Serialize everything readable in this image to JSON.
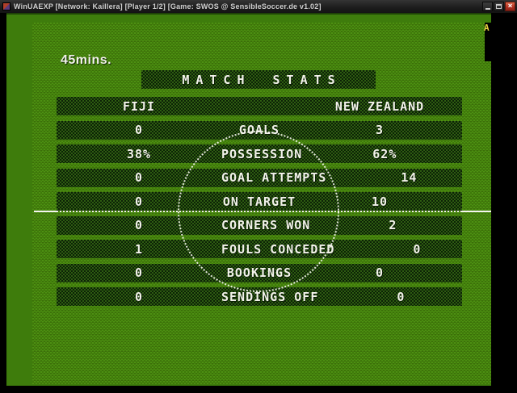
{
  "window": {
    "title": "WinUAEXP [Network: Kaillera] [Player 1/2] [Game: SWOS @ SensibleSoccer.de v1.02]",
    "controls": {
      "close_label": "×"
    }
  },
  "hud": {
    "timer": "45mins.",
    "indicator": "A"
  },
  "match_stats": {
    "title": "MATCH STATS",
    "home_team": "FIJI",
    "away_team": "NEW ZEALAND",
    "rows": [
      {
        "stat": "GOALS",
        "home": "0",
        "away": "3"
      },
      {
        "stat": "POSSESSION",
        "home": "38%",
        "away": "62%"
      },
      {
        "stat": "GOAL ATTEMPTS",
        "home": "0",
        "away": "14"
      },
      {
        "stat": "ON TARGET",
        "home": "0",
        "away": "10"
      },
      {
        "stat": "CORNERS WON",
        "home": "0",
        "away": "2"
      },
      {
        "stat": "FOULS CONCEDED",
        "home": "1",
        "away": "0"
      },
      {
        "stat": "BOOKINGS",
        "home": "0",
        "away": "0"
      },
      {
        "stat": "SENDINGS OFF",
        "home": "0",
        "away": "0"
      }
    ]
  },
  "colors": {
    "pitch_green": "#47860e",
    "border_green": "#3e7c0c",
    "bar_dither_dark": "#0c2206",
    "bar_dither_green": "#2e5c11",
    "text_white": "#f2f2ea",
    "close_red": "#b03020",
    "indicator_yellow": "#e6d042"
  }
}
